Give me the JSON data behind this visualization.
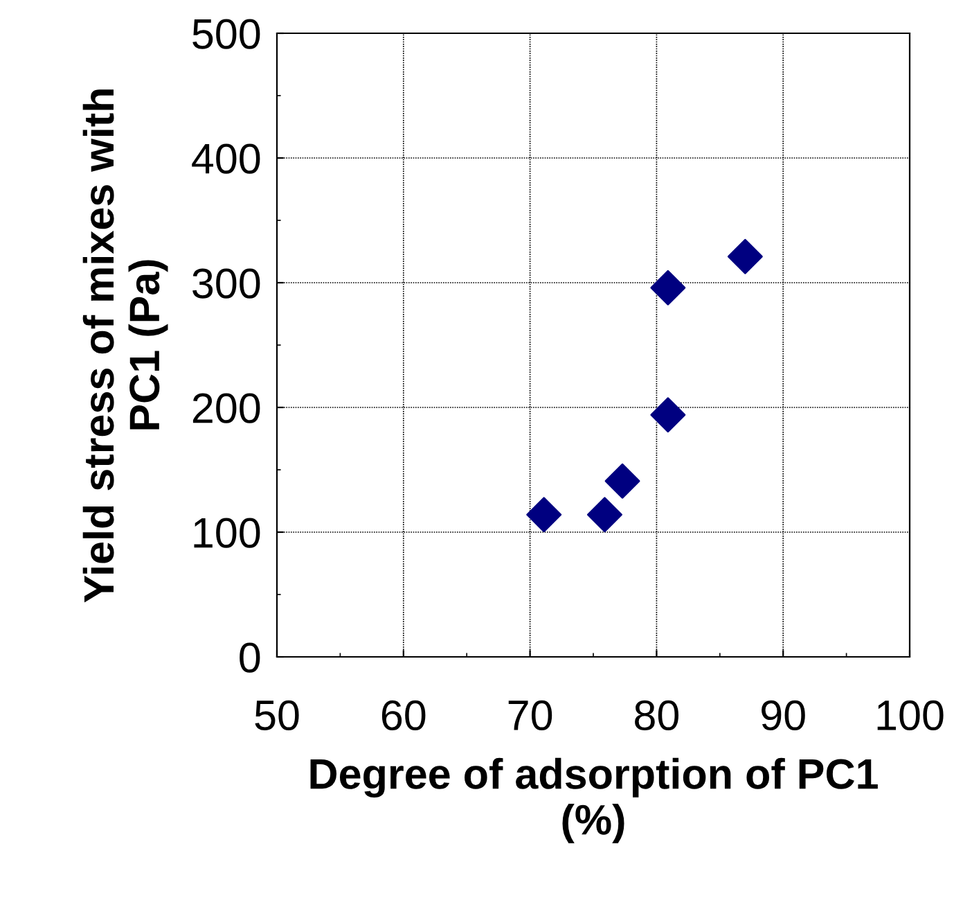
{
  "chart_data": {
    "type": "scatter",
    "xlabel": "Degree of adsorption of PC1\n(%)",
    "ylabel": "Yield stress of mixes with\nPC1 (Pa)",
    "x": [
      71.1,
      75.9,
      77.3,
      80.9,
      80.9,
      87.0
    ],
    "series": [
      {
        "color": "#000080",
        "values": [
          114,
          114,
          141,
          194,
          296,
          321
        ]
      }
    ],
    "marker": "diamond",
    "xlim": [
      50,
      100
    ],
    "ylim": [
      0,
      500
    ],
    "xticks": [
      50,
      {
        "value": 55,
        "label": null
      },
      60,
      {
        "value": 65,
        "label": null
      },
      70,
      {
        "value": 75,
        "label": null
      },
      80,
      {
        "value": 85,
        "label": null
      },
      90,
      {
        "value": 95,
        "label": null
      },
      100
    ],
    "yticks": [
      0,
      {
        "value": 50,
        "label": null
      },
      100,
      {
        "value": 150,
        "label": null
      },
      200,
      {
        "value": 250,
        "label": null
      },
      300,
      {
        "value": 350,
        "label": null
      },
      400,
      {
        "value": 450,
        "label": null
      },
      500
    ],
    "grid": true,
    "legend": false
  }
}
